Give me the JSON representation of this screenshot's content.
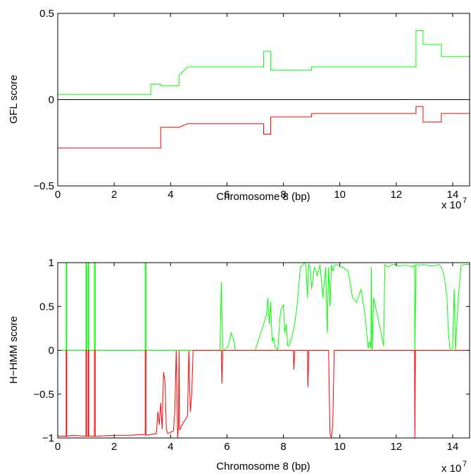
{
  "chart_data": [
    {
      "type": "line",
      "title": "",
      "xlabel": "Chromosome 8 (bp)",
      "ylabel": "GFL score",
      "x_multiplier_label": "x 10",
      "x_multiplier_exp": "7",
      "xlim": [
        0,
        14.6
      ],
      "ylim": [
        -0.5,
        0.5
      ],
      "x_ticks": [
        0,
        2,
        4,
        6,
        8,
        10,
        12,
        14
      ],
      "x_tick_labels": [
        "0",
        "2",
        "4",
        "6",
        "8",
        "10",
        "12",
        "14"
      ],
      "y_ticks": [
        -0.5,
        0,
        0.5
      ],
      "y_tick_labels": [
        "−0.5",
        "0",
        "0.5"
      ],
      "grid": false,
      "zero_line": true,
      "series": [
        {
          "color": "#00ff00",
          "step_x": [
            0,
            3.3,
            3.3,
            3.65,
            3.65,
            4.3,
            4.3,
            4.6,
            4.6,
            7.3,
            7.3,
            7.55,
            7.55,
            9.0,
            9.0,
            12.7,
            12.7,
            12.95,
            12.95,
            13.6,
            13.6,
            14.6
          ],
          "step_y": [
            0.03,
            0.03,
            0.09,
            0.09,
            0.08,
            0.08,
            0.14,
            0.19,
            0.19,
            0.19,
            0.28,
            0.28,
            0.17,
            0.17,
            0.19,
            0.19,
            0.4,
            0.4,
            0.32,
            0.32,
            0.25,
            0.25
          ]
        },
        {
          "color": "#ff0000",
          "step_x": [
            0,
            3.65,
            3.65,
            4.3,
            4.3,
            4.6,
            4.6,
            7.3,
            7.3,
            7.55,
            7.55,
            9.0,
            9.0,
            12.7,
            12.7,
            12.95,
            12.95,
            13.6,
            13.6,
            14.6
          ],
          "step_y": [
            -0.28,
            -0.28,
            -0.16,
            -0.16,
            -0.16,
            -0.14,
            -0.14,
            -0.14,
            -0.2,
            -0.2,
            -0.1,
            -0.1,
            -0.08,
            -0.08,
            -0.04,
            -0.04,
            -0.13,
            -0.13,
            -0.08,
            -0.08
          ]
        }
      ]
    },
    {
      "type": "line",
      "title": "",
      "xlabel": "Chromosome 8 (bp)",
      "ylabel": "H−HMM score",
      "x_multiplier_label": "x 10",
      "x_multiplier_exp": "7",
      "xlim": [
        0,
        14.6
      ],
      "ylim": [
        -1,
        1
      ],
      "x_ticks": [
        0,
        2,
        4,
        6,
        8,
        10,
        12,
        14
      ],
      "x_tick_labels": [
        "0",
        "2",
        "4",
        "6",
        "8",
        "10",
        "12",
        "14"
      ],
      "y_ticks": [
        -1,
        -0.5,
        0,
        0.5,
        1
      ],
      "y_tick_labels": [
        "−1",
        "−0.5",
        "0",
        "0.5",
        "1"
      ],
      "grid": false,
      "series": [
        {
          "color": "#00ff00",
          "x": [
            0,
            0.3,
            0.3,
            0.32,
            0.32,
            0.35,
            0.35,
            1.0,
            1.0,
            1.02,
            1.02,
            1.08,
            1.08,
            1.1,
            1.1,
            1.3,
            1.3,
            1.33,
            1.33,
            3.1,
            3.1,
            3.13,
            3.13,
            5.75,
            5.8,
            5.85,
            5.9,
            6.05,
            6.15,
            6.2,
            6.25,
            6.3,
            7.0,
            7.4,
            7.45,
            7.5,
            7.55,
            7.6,
            7.65,
            7.7,
            7.8,
            7.9,
            8.0,
            8.05,
            8.1,
            8.15,
            8.2,
            8.3,
            8.4,
            8.5,
            8.6,
            8.7,
            8.75,
            8.8,
            8.85,
            8.9,
            8.95,
            9.0,
            9.1,
            9.2,
            9.3,
            9.4,
            9.5,
            9.55,
            9.6,
            9.65,
            9.7,
            9.75,
            9.8,
            9.9,
            10.0,
            10.1,
            10.3,
            10.45,
            10.6,
            10.75,
            10.9,
            11.0,
            11.05,
            11.1,
            11.12,
            11.14,
            11.2,
            11.4,
            11.55,
            11.6,
            11.7,
            11.8,
            11.9,
            12.0,
            12.1,
            12.2,
            12.4,
            12.6,
            12.65,
            12.66,
            12.7,
            12.8,
            13.0,
            13.2,
            13.4,
            13.5,
            13.6,
            13.7,
            13.8,
            13.85,
            13.9,
            14.0,
            14.05,
            14.1,
            14.2,
            14.3,
            14.45,
            14.6
          ],
          "y": [
            0,
            0,
            1,
            1,
            0,
            0,
            0,
            0,
            1,
            1,
            0,
            0,
            1,
            1,
            0,
            0,
            1,
            1,
            0,
            0,
            1,
            1,
            0,
            0,
            0.78,
            0,
            0,
            0.05,
            0.2,
            0.15,
            0.1,
            0,
            0,
            0.4,
            0.6,
            0.3,
            0.55,
            0.1,
            0.15,
            0.05,
            0,
            0.45,
            0.52,
            0.2,
            0.3,
            0.05,
            0.05,
            0.15,
            0.3,
            0.55,
            0.95,
            0.98,
            1.0,
            0.97,
            0.6,
            0.98,
            0.95,
            0.7,
            0.95,
            0.85,
            0.98,
            0.6,
            0.95,
            0.2,
            0.95,
            0.5,
            0.98,
            0.9,
            0.97,
            0.98,
            0.95,
            0.95,
            0.9,
            0.6,
            0.55,
            0.7,
            0.4,
            0.02,
            0.1,
            0.02,
            0.95,
            0.0,
            0.6,
            0.3,
            0.05,
            0.98,
            0.95,
            0.97,
            0.98,
            0.98,
            0.96,
            0.97,
            0.97,
            0.95,
            0.97,
            0,
            0.98,
            0.97,
            0.98,
            0.96,
            0.97,
            0.98,
            0.95,
            0.85,
            0.6,
            0.2,
            0.02,
            0.02,
            0.7,
            0.0,
            0.6,
            0.97,
            0.98,
            0.98
          ]
        },
        {
          "color": "#ff0000",
          "x": [
            0,
            0.05,
            0.3,
            0.3,
            0.32,
            0.32,
            0.35,
            0.35,
            0.5,
            1.0,
            1.0,
            1.02,
            1.02,
            1.08,
            1.08,
            1.1,
            1.1,
            1.3,
            1.3,
            1.33,
            1.33,
            2.0,
            2.5,
            3.1,
            3.1,
            3.13,
            3.13,
            3.3,
            3.5,
            3.55,
            3.6,
            3.65,
            3.7,
            3.75,
            3.8,
            3.85,
            3.9,
            4.1,
            4.15,
            4.2,
            4.22,
            4.25,
            4.28,
            4.3,
            4.32,
            4.35,
            4.4,
            4.6,
            4.65,
            4.7,
            4.75,
            4.8,
            5.8,
            5.82,
            5.85,
            7.0,
            8.35,
            8.37,
            8.4,
            8.85,
            8.87,
            8.9,
            9.6,
            9.65,
            9.7,
            9.75,
            9.8,
            12.65,
            12.66,
            12.68,
            14.6
          ],
          "y": [
            -0.97,
            -0.98,
            -0.98,
            0,
            0,
            -0.98,
            -0.98,
            -0.98,
            -0.97,
            -0.98,
            0,
            0,
            -0.98,
            -0.98,
            0,
            0,
            -0.98,
            -0.98,
            0,
            0,
            -0.98,
            -0.97,
            -0.97,
            -0.96,
            0,
            0,
            -0.97,
            -0.96,
            -0.95,
            -0.7,
            -0.85,
            -0.6,
            -0.9,
            -0.25,
            -0.35,
            -0.9,
            -0.95,
            -0.92,
            -0.7,
            0,
            -0.4,
            -1.0,
            -0.85,
            0,
            -0.9,
            -0.9,
            -0.85,
            -0.75,
            0,
            -0.7,
            -0.5,
            0,
            0,
            -0.38,
            0,
            0,
            0,
            -0.22,
            0,
            0,
            -0.42,
            0,
            0,
            -0.95,
            -1.0,
            -0.85,
            0,
            0,
            -1.0,
            0,
            0
          ]
        }
      ]
    }
  ]
}
